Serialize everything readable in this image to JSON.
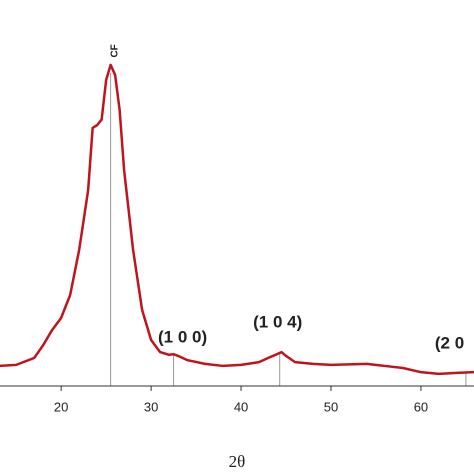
{
  "chart_data": {
    "type": "line",
    "x_label": "2θ",
    "xlim": [
      13.2,
      65.9
    ],
    "xticks": [
      20,
      30,
      40,
      50,
      60
    ],
    "ylim": [
      0,
      100
    ],
    "series": [
      {
        "color": "#c0141c",
        "x": [
          13.2,
          15,
          17,
          18,
          19,
          20,
          21,
          22,
          23,
          23.5,
          24,
          24.5,
          25,
          25.5,
          26,
          26.5,
          27,
          28,
          29,
          30,
          31,
          32,
          32.5,
          33,
          34,
          36,
          38,
          40,
          42,
          43,
          44,
          44.5,
          45,
          46,
          48,
          50,
          54,
          56,
          58,
          60,
          62,
          64,
          65.9
        ],
        "values": [
          5.8,
          6.1,
          8.1,
          11.8,
          16.2,
          19.7,
          26.3,
          39.3,
          56.6,
          74.6,
          75.4,
          77,
          88.4,
          92.8,
          89.9,
          79.8,
          62.4,
          39.3,
          22,
          13.3,
          9.8,
          9,
          9.2,
          8.7,
          7.5,
          6.4,
          5.8,
          6.1,
          6.9,
          8.1,
          9.2,
          9.8,
          8.7,
          6.9,
          6.4,
          6.1,
          6.4,
          5.8,
          5.2,
          4,
          3.5,
          3.8,
          4
        ]
      }
    ],
    "references": [
      {
        "x": 25.5,
        "y": 90.5,
        "label": "CF"
      },
      {
        "x": 32.5,
        "y": 9.2,
        "label": "(1 0 0)"
      },
      {
        "x": 44.3,
        "y": 9.5,
        "label": "(1 0 4)"
      },
      {
        "x": 65,
        "y": 4,
        "label": "(2 0"
      }
    ]
  }
}
